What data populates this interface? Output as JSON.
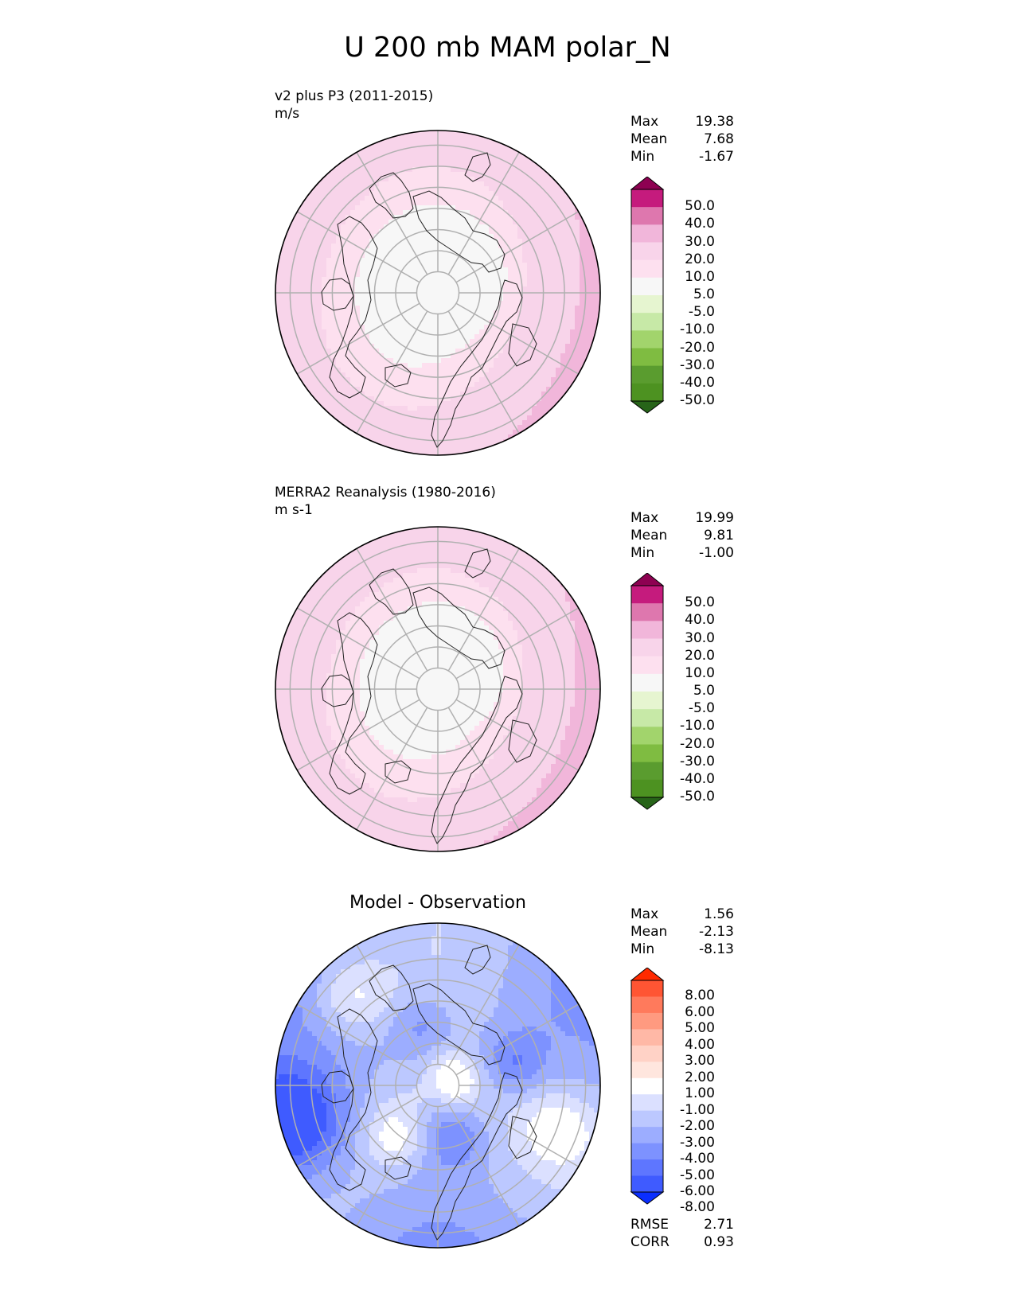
{
  "title": "U 200 mb MAM polar_N",
  "chart_data": [
    {
      "type": "heatmap",
      "projection": "north-polar-stereographic",
      "title": "v2 plus P3 (2011-2015)",
      "units": "m/s",
      "stats": {
        "max": "19.38",
        "mean": "7.68",
        "min": "-1.67"
      },
      "stat_labels": {
        "max": "Max",
        "mean": "Mean",
        "min": "Min"
      },
      "colorbar": {
        "labels": [
          "50.0",
          "40.0",
          "30.0",
          "20.0",
          "10.0",
          "5.0",
          "-5.0",
          "-10.0",
          "-20.0",
          "-30.0",
          "-40.0",
          "-50.0"
        ],
        "colors": [
          "#8e0152",
          "#c51b7d",
          "#de77ae",
          "#f1b6da",
          "#f8d4ea",
          "#fde0ef",
          "#f7f7f7",
          "#e6f5d0",
          "#c7e9a7",
          "#a2d46c",
          "#7fbc41",
          "#5a9c2f",
          "#4d9221",
          "#276419"
        ]
      },
      "field": {
        "pole_value": 0,
        "midlat_value": 10,
        "jet_value": 18
      }
    },
    {
      "type": "heatmap",
      "projection": "north-polar-stereographic",
      "title": "MERRA2 Reanalysis (1980-2016)",
      "units": "m s-1",
      "stats": {
        "max": "19.99",
        "mean": "9.81",
        "min": "-1.00"
      },
      "stat_labels": {
        "max": "Max",
        "mean": "Mean",
        "min": "Min"
      },
      "colorbar": {
        "labels": [
          "50.0",
          "40.0",
          "30.0",
          "20.0",
          "10.0",
          "5.0",
          "-5.0",
          "-10.0",
          "-20.0",
          "-30.0",
          "-40.0",
          "-50.0"
        ],
        "colors": [
          "#8e0152",
          "#c51b7d",
          "#de77ae",
          "#f1b6da",
          "#f8d4ea",
          "#fde0ef",
          "#f7f7f7",
          "#e6f5d0",
          "#c7e9a7",
          "#a2d46c",
          "#7fbc41",
          "#5a9c2f",
          "#4d9221",
          "#276419"
        ]
      },
      "field": {
        "pole_value": 0,
        "midlat_value": 10,
        "jet_value": 19
      }
    },
    {
      "type": "heatmap",
      "projection": "north-polar-stereographic",
      "title": "Model - Observation",
      "units": "",
      "stats": {
        "max": "1.56",
        "mean": "-2.13",
        "min": "-8.13"
      },
      "stat_labels": {
        "max": "Max",
        "mean": "Mean",
        "min": "Min"
      },
      "extra_stats": {
        "rmse": "2.71",
        "corr": "0.93"
      },
      "extra_labels": {
        "rmse": "RMSE",
        "corr": "CORR"
      },
      "colorbar": {
        "labels": [
          "8.00",
          "6.00",
          "5.00",
          "4.00",
          "3.00",
          "2.00",
          "1.00",
          "-1.00",
          "-2.00",
          "-3.00",
          "-4.00",
          "-5.00",
          "-6.00",
          "-8.00"
        ],
        "colors": [
          "#ff2a00",
          "#ff5533",
          "#ff7a5c",
          "#ff9a80",
          "#ffb8a6",
          "#ffd2c6",
          "#ffe6de",
          "#ffffff",
          "#dbe0ff",
          "#bcc8ff",
          "#9cadff",
          "#7d92ff",
          "#5e76ff",
          "#3f5bff",
          "#0a2eff"
        ]
      }
    }
  ]
}
